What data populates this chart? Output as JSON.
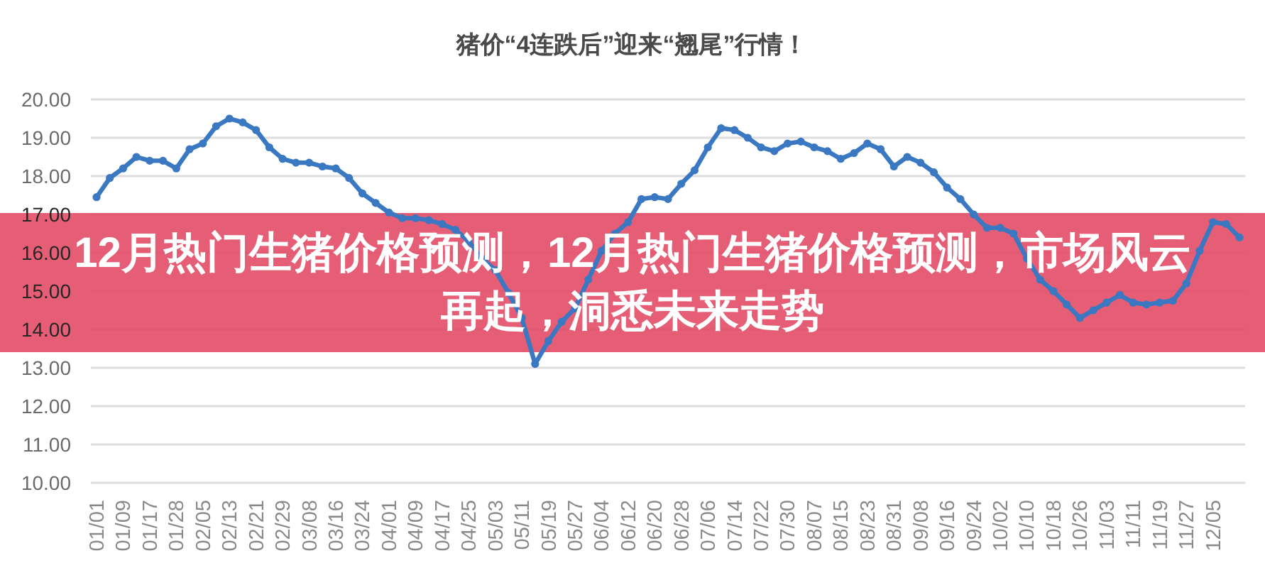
{
  "chart_data": {
    "type": "line",
    "title": "猪价“4连跌后”迎来“翘尾”行情！",
    "annotations": [
      "12月热门生猪价格预测，12月热门生猪价格预测，市场风云再起，洞悉未来走势"
    ],
    "categories": [
      "01/01",
      null,
      "01/09",
      null,
      "01/17",
      null,
      "01/28",
      null,
      "02/05",
      null,
      "02/13",
      null,
      "02/21",
      null,
      "02/29",
      null,
      "03/08",
      null,
      "03/16",
      null,
      "03/24",
      null,
      "04/01",
      null,
      "04/09",
      null,
      "04/17",
      null,
      "04/25",
      null,
      "05/03",
      null,
      "05/11",
      null,
      "05/19",
      null,
      "05/27",
      null,
      "06/04",
      null,
      "06/12",
      null,
      "06/20",
      null,
      "06/28",
      null,
      "07/06",
      null,
      "07/14",
      null,
      "07/22",
      null,
      "07/30",
      null,
      "08/07",
      null,
      "08/15",
      null,
      "08/23",
      null,
      "08/31",
      null,
      "09/08",
      null,
      "09/16",
      null,
      "09/24",
      null,
      "10/02",
      null,
      "10/10",
      null,
      "10/18",
      null,
      "10/26",
      null,
      "11/03",
      null,
      "11/11",
      null,
      "11/19",
      null,
      "11/27",
      null,
      "12/05",
      null,
      null
    ],
    "values": [
      17.45,
      17.95,
      18.2,
      18.5,
      18.4,
      18.4,
      18.2,
      18.7,
      18.85,
      19.3,
      19.5,
      19.4,
      19.2,
      18.75,
      18.45,
      18.35,
      18.35,
      18.25,
      18.2,
      17.95,
      17.55,
      17.3,
      17.05,
      16.9,
      16.9,
      16.85,
      16.75,
      16.6,
      16.3,
      15.85,
      15.55,
      14.95,
      14.3,
      13.1,
      13.7,
      14.2,
      14.55,
      15.3,
      16.05,
      16.5,
      16.8,
      17.4,
      17.45,
      17.4,
      17.8,
      18.15,
      18.75,
      19.25,
      19.2,
      19.0,
      18.75,
      18.65,
      18.85,
      18.9,
      18.75,
      18.65,
      18.45,
      18.6,
      18.85,
      18.7,
      18.25,
      18.5,
      18.35,
      18.1,
      17.7,
      17.4,
      17.0,
      16.65,
      16.65,
      16.5,
      15.85,
      15.3,
      15.0,
      14.65,
      14.3,
      14.5,
      14.7,
      14.9,
      14.7,
      14.65,
      14.7,
      14.75,
      15.2,
      16.05,
      16.8,
      16.75,
      16.4
    ],
    "color": "#3b78c2",
    "ylim": [
      10,
      20
    ],
    "yticks": [
      {
        "value": 10,
        "label": "10.00"
      },
      {
        "value": 11,
        "label": "11.00"
      },
      {
        "value": 12,
        "label": "12.00"
      },
      {
        "value": 13,
        "label": "13.00"
      },
      {
        "value": 14,
        "label": "14.00"
      },
      {
        "value": 15,
        "label": "15.00"
      },
      {
        "value": 16,
        "label": "16.00"
      },
      {
        "value": 17,
        "label": "17.00"
      },
      {
        "value": 18,
        "label": "18.00"
      },
      {
        "value": 19,
        "label": "19.00"
      },
      {
        "value": 20,
        "label": "20.00"
      }
    ],
    "grid": "y",
    "marker": "circle",
    "line_style": "solid"
  }
}
